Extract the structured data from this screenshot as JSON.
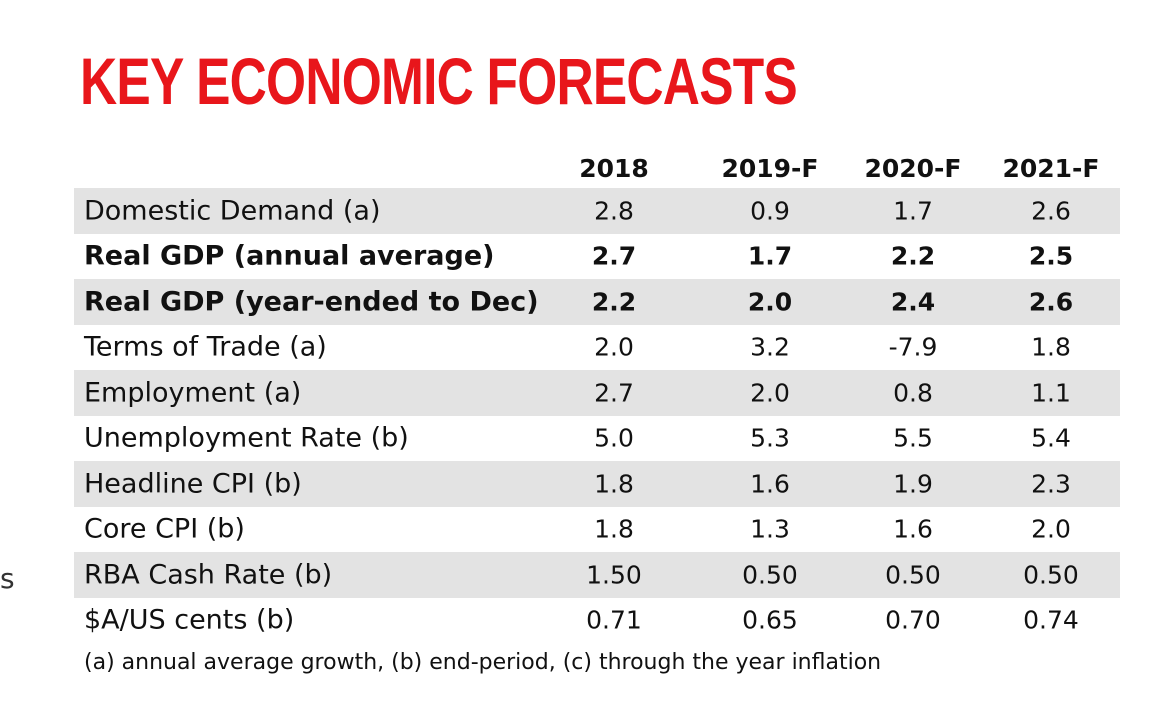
{
  "title": "KEY ECONOMIC FORECASTS",
  "footnote": "(a) annual average growth, (b) end-period, (c) through the year inflation",
  "edge_mark": "s",
  "chart_data": {
    "type": "table",
    "title": "KEY ECONOMIC FORECASTS",
    "columns": [
      "2018",
      "2019-F",
      "2020-F",
      "2021-F"
    ],
    "rows": [
      {
        "label": "Domestic Demand (a)",
        "values": [
          "2.8",
          "0.9",
          "1.7",
          "2.6"
        ],
        "bold": false
      },
      {
        "label": "Real GDP (annual average)",
        "values": [
          "2.7",
          "1.7",
          "2.2",
          "2.5"
        ],
        "bold": true
      },
      {
        "label": "Real GDP (year-ended to Dec)",
        "values": [
          "2.2",
          "2.0",
          "2.4",
          "2.6"
        ],
        "bold": true
      },
      {
        "label": "Terms of Trade (a)",
        "values": [
          "2.0",
          "3.2",
          "-7.9",
          "1.8"
        ],
        "bold": false
      },
      {
        "label": "Employment (a)",
        "values": [
          "2.7",
          "2.0",
          "0.8",
          "1.1"
        ],
        "bold": false
      },
      {
        "label": "Unemployment Rate (b)",
        "values": [
          "5.0",
          "5.3",
          "5.5",
          "5.4"
        ],
        "bold": false
      },
      {
        "label": "Headline CPI (b)",
        "values": [
          "1.8",
          "1.6",
          "1.9",
          "2.3"
        ],
        "bold": false
      },
      {
        "label": "Core CPI (b)",
        "values": [
          "1.8",
          "1.3",
          "1.6",
          "2.0"
        ],
        "bold": false
      },
      {
        "label": "RBA Cash Rate (b)",
        "values": [
          "1.50",
          "0.50",
          "0.50",
          "0.50"
        ],
        "bold": false
      },
      {
        "label": "$A/US cents (b)",
        "values": [
          "0.71",
          "0.65",
          "0.70",
          "0.74"
        ],
        "bold": false
      }
    ]
  }
}
